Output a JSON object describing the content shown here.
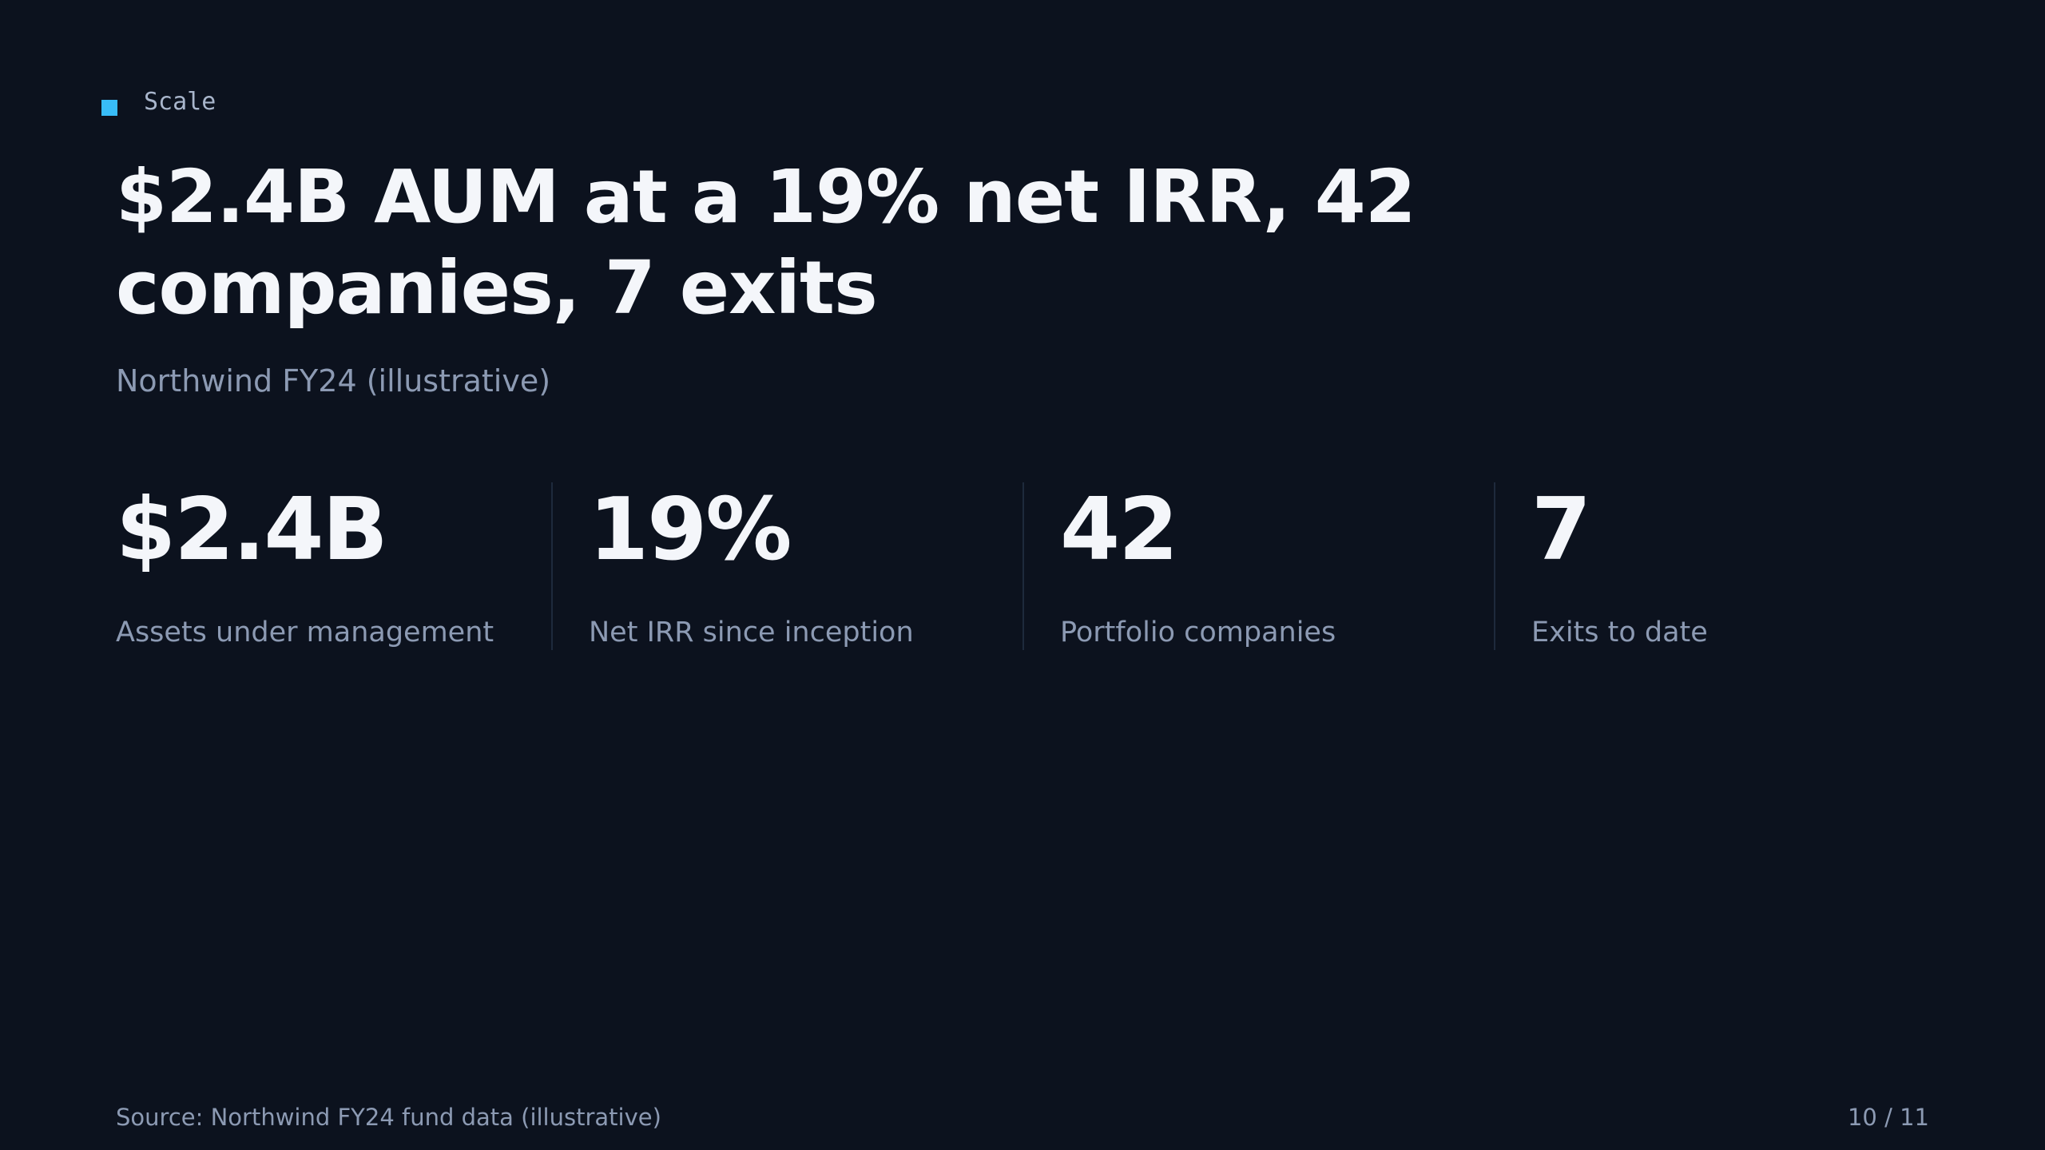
{
  "kicker": "Scale",
  "title": "$2.4B AUM at a 19% net IRR, 42 companies, 7 exits",
  "subtitle": "Northwind FY24 (illustrative)",
  "stats": [
    {
      "value": "$2.4B",
      "label": "Assets under management"
    },
    {
      "value": "19%",
      "label": "Net IRR since inception"
    },
    {
      "value": "42",
      "label": "Portfolio companies"
    },
    {
      "value": "7",
      "label": "Exits to date"
    }
  ],
  "footer": {
    "source": "Source: Northwind FY24 fund data (illustrative)",
    "page": "10 / 11"
  }
}
